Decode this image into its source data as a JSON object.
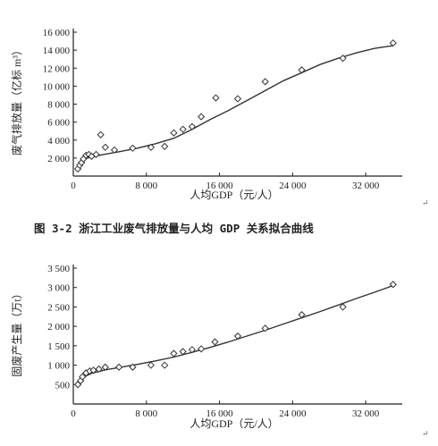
{
  "figures": [
    {
      "caption": "图 3-2   浙江工业废气排放量与人均 GDP 关系拟合曲线",
      "return_mark": "↵"
    },
    {
      "caption": "",
      "return_mark": "↵"
    }
  ],
  "chart_data": [
    {
      "type": "scatter",
      "title": "",
      "xlabel": "人均GDP（元/人）",
      "ylabel": "废气排放量（亿标 m³）",
      "xlim": [
        0,
        36000
      ],
      "ylim": [
        0,
        16000
      ],
      "x_ticks": [
        0,
        8000,
        16000,
        24000,
        32000
      ],
      "x_tick_labels": [
        "0",
        "8 000",
        "16 000",
        "24 000",
        "32 000"
      ],
      "y_ticks": [
        2000,
        4000,
        6000,
        8000,
        10000,
        12000,
        14000,
        16000
      ],
      "y_tick_labels": [
        "2 000",
        "4 000",
        "6 000",
        "8 000",
        "10 000",
        "12 000",
        "14 000",
        "16 000"
      ],
      "grid": false,
      "marker": "diamond",
      "points": [
        [
          500,
          800
        ],
        [
          700,
          1200
        ],
        [
          900,
          1500
        ],
        [
          1100,
          1900
        ],
        [
          1400,
          2300
        ],
        [
          1700,
          2400
        ],
        [
          2000,
          2200
        ],
        [
          2500,
          2400
        ],
        [
          3000,
          4600
        ],
        [
          3500,
          3200
        ],
        [
          4500,
          2900
        ],
        [
          6500,
          3100
        ],
        [
          8500,
          3200
        ],
        [
          10000,
          3300
        ],
        [
          11000,
          4800
        ],
        [
          12000,
          5200
        ],
        [
          13000,
          5500
        ],
        [
          14000,
          6600
        ],
        [
          15600,
          8700
        ],
        [
          18000,
          8600
        ],
        [
          21000,
          10500
        ],
        [
          25000,
          11800
        ],
        [
          29500,
          13100
        ],
        [
          35000,
          14800
        ]
      ],
      "fit_curve": [
        [
          500,
          1200
        ],
        [
          1500,
          2000
        ],
        [
          3000,
          2350
        ],
        [
          5000,
          2700
        ],
        [
          7000,
          3100
        ],
        [
          9000,
          3600
        ],
        [
          11000,
          4200
        ],
        [
          13000,
          5200
        ],
        [
          15000,
          6300
        ],
        [
          17000,
          7300
        ],
        [
          19000,
          8400
        ],
        [
          21000,
          9500
        ],
        [
          23000,
          10600
        ],
        [
          25000,
          11500
        ],
        [
          27000,
          12400
        ],
        [
          29000,
          13100
        ],
        [
          31000,
          13700
        ],
        [
          33000,
          14200
        ],
        [
          35000,
          14500
        ]
      ]
    },
    {
      "type": "scatter",
      "title": "",
      "xlabel": "人均GDP（元/人）",
      "ylabel": "固废产生量（万t）",
      "xlim": [
        0,
        36000
      ],
      "ylim": [
        0,
        3500
      ],
      "x_ticks": [
        0,
        8000,
        16000,
        24000,
        32000
      ],
      "x_tick_labels": [
        "0",
        "8 000",
        "16 000",
        "24 000",
        "32 000"
      ],
      "y_ticks": [
        500,
        1000,
        1500,
        2000,
        2500,
        3000,
        3500
      ],
      "y_tick_labels": [
        "500",
        "1 000",
        "1 500",
        "2 000",
        "2 500",
        "3 000",
        "3 500"
      ],
      "grid": false,
      "marker": "diamond",
      "points": [
        [
          500,
          500
        ],
        [
          800,
          600
        ],
        [
          1000,
          700
        ],
        [
          1400,
          800
        ],
        [
          1800,
          850
        ],
        [
          2200,
          870
        ],
        [
          2800,
          900
        ],
        [
          3500,
          950
        ],
        [
          5000,
          950
        ],
        [
          6500,
          950
        ],
        [
          8500,
          1000
        ],
        [
          10000,
          1000
        ],
        [
          11000,
          1300
        ],
        [
          12000,
          1350
        ],
        [
          13000,
          1400
        ],
        [
          14000,
          1420
        ],
        [
          15500,
          1600
        ],
        [
          18000,
          1750
        ],
        [
          21000,
          1950
        ],
        [
          25000,
          2300
        ],
        [
          29500,
          2500
        ],
        [
          35000,
          3080
        ]
      ],
      "fit_curve": [
        [
          500,
          550
        ],
        [
          1000,
          680
        ],
        [
          2000,
          790
        ],
        [
          3500,
          880
        ],
        [
          5000,
          940
        ],
        [
          7000,
          1020
        ],
        [
          9000,
          1110
        ],
        [
          11000,
          1210
        ],
        [
          13000,
          1330
        ],
        [
          15000,
          1460
        ],
        [
          17000,
          1600
        ],
        [
          19000,
          1750
        ],
        [
          21000,
          1900
        ],
        [
          23000,
          2060
        ],
        [
          25000,
          2220
        ],
        [
          27000,
          2380
        ],
        [
          29000,
          2550
        ],
        [
          31000,
          2720
        ],
        [
          33000,
          2880
        ],
        [
          35000,
          3050
        ]
      ]
    }
  ]
}
